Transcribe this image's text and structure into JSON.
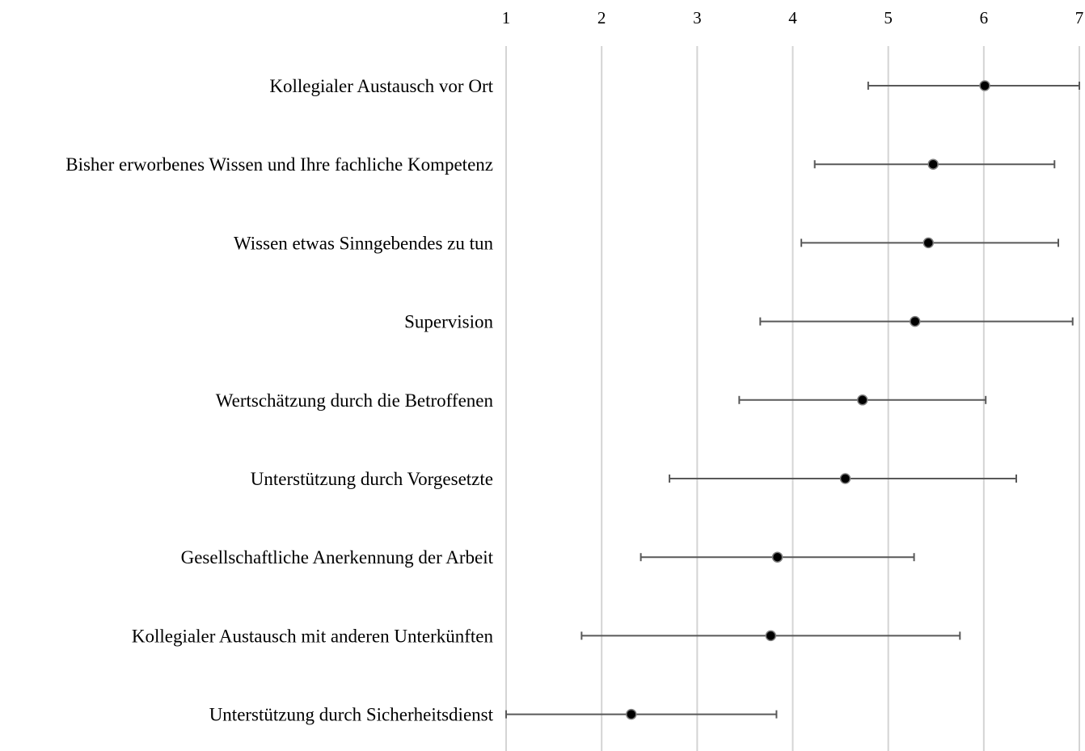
{
  "chart_data": {
    "type": "scatter",
    "orientation": "horizontal",
    "title": "",
    "xlabel": "",
    "ylabel": "",
    "xlim": [
      1,
      7
    ],
    "x_ticks": [
      "1",
      "2",
      "3",
      "4",
      "5",
      "6",
      "7"
    ],
    "x_axis_position": "top",
    "grid": true,
    "legend": "none",
    "colors": {
      "point": "#000000",
      "error_bar": "#595959",
      "grid": "#d4d4d4"
    },
    "categories": [
      "Kollegialer Austausch vor Ort",
      "Bisher erworbenes Wissen und Ihre fachliche Kompetenz",
      "Wissen etwas Sinngebendes zu tun",
      "Supervision",
      "Wertschätzung durch die Betroffenen",
      "Unterstützung durch Vorgesetzte",
      "Gesellschaftliche Anerkennung der Arbeit",
      "Kollegialer Austausch mit anderen Unterkünften",
      "Unterstützung durch Sicherheitsdienst"
    ],
    "values": [
      6.01,
      5.47,
      5.42,
      5.28,
      4.73,
      4.55,
      3.84,
      3.77,
      2.31
    ],
    "error_low": [
      4.79,
      4.23,
      4.09,
      3.66,
      3.44,
      2.71,
      2.41,
      1.79,
      1.0
    ],
    "error_high": [
      7.0,
      6.74,
      6.78,
      6.93,
      6.02,
      6.34,
      5.27,
      5.75,
      3.83
    ]
  }
}
